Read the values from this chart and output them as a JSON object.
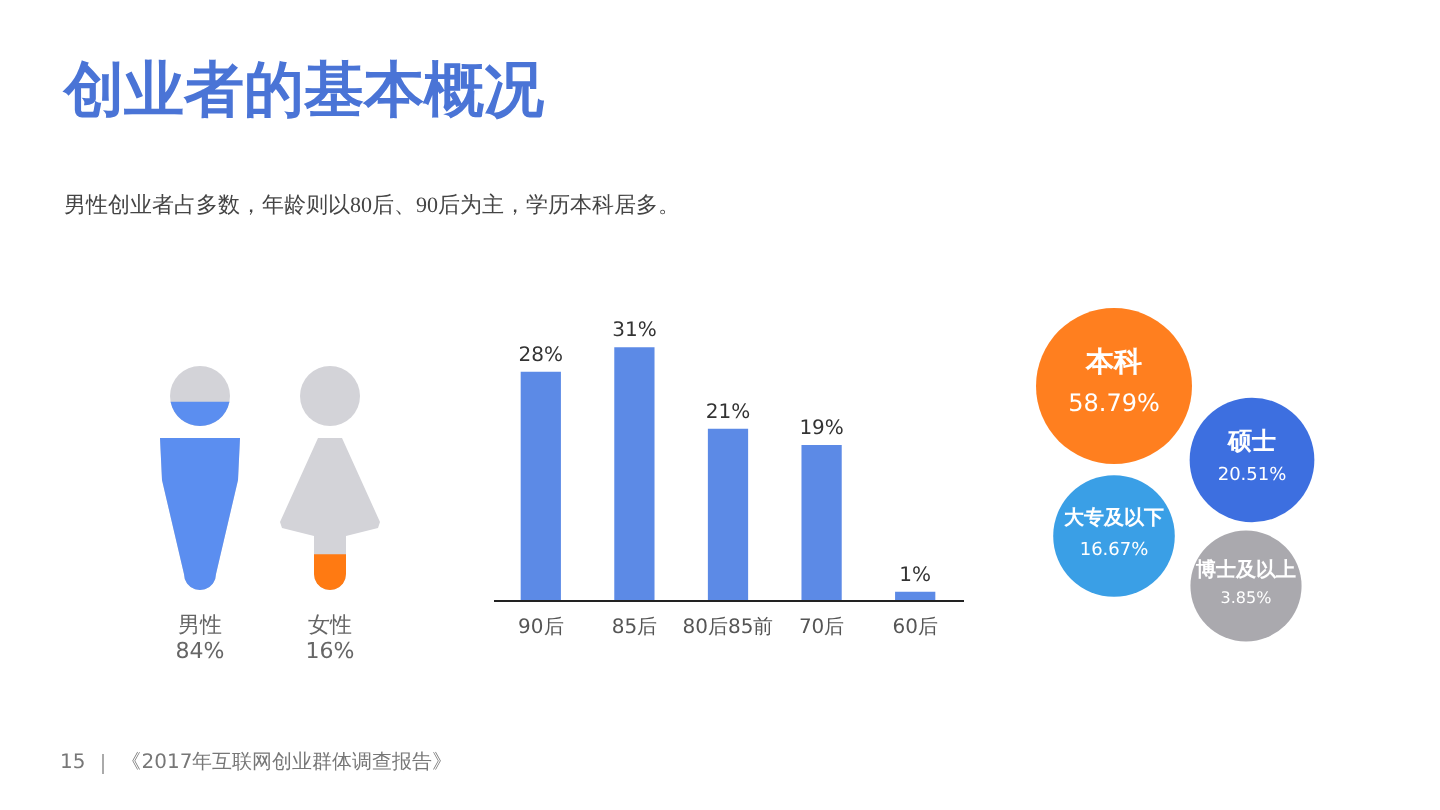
{
  "chart_data": [
    {
      "type": "other",
      "title": "创业者的基本概况",
      "subtitle": "男性创业者占多数，年龄则以80后、90后为主，学历本科居多。",
      "annotations": [
        "15",
        "《2017年互联网创业群体调查报告》"
      ],
      "categories": [
        "男性",
        "女性"
      ],
      "values": [
        84,
        16
      ],
      "colors": [
        "#5b8ef0",
        "#ff7a12"
      ],
      "value_labels": [
        "84%",
        "16%"
      ]
    },
    {
      "type": "bar",
      "categories": [
        "90后",
        "85后",
        "80后85前",
        "70后",
        "60后"
      ],
      "values": [
        28,
        31,
        21,
        19,
        1
      ],
      "color": "#5c8ae6",
      "value_labels": [
        "28%",
        "31%",
        "21%",
        "19%",
        "1%"
      ]
    },
    {
      "type": "other",
      "categories": [
        "本科",
        "硕士",
        "大专及以下",
        "博士及以上"
      ],
      "values": [
        58.79,
        20.51,
        16.67,
        3.85
      ],
      "colors": [
        "#ff7f1f",
        "#3d6fe0",
        "#3a9fe6",
        "#aaa9ae"
      ],
      "value_labels": [
        "58.79%",
        "20.51%",
        "16.67%",
        "3.85%"
      ]
    }
  ]
}
